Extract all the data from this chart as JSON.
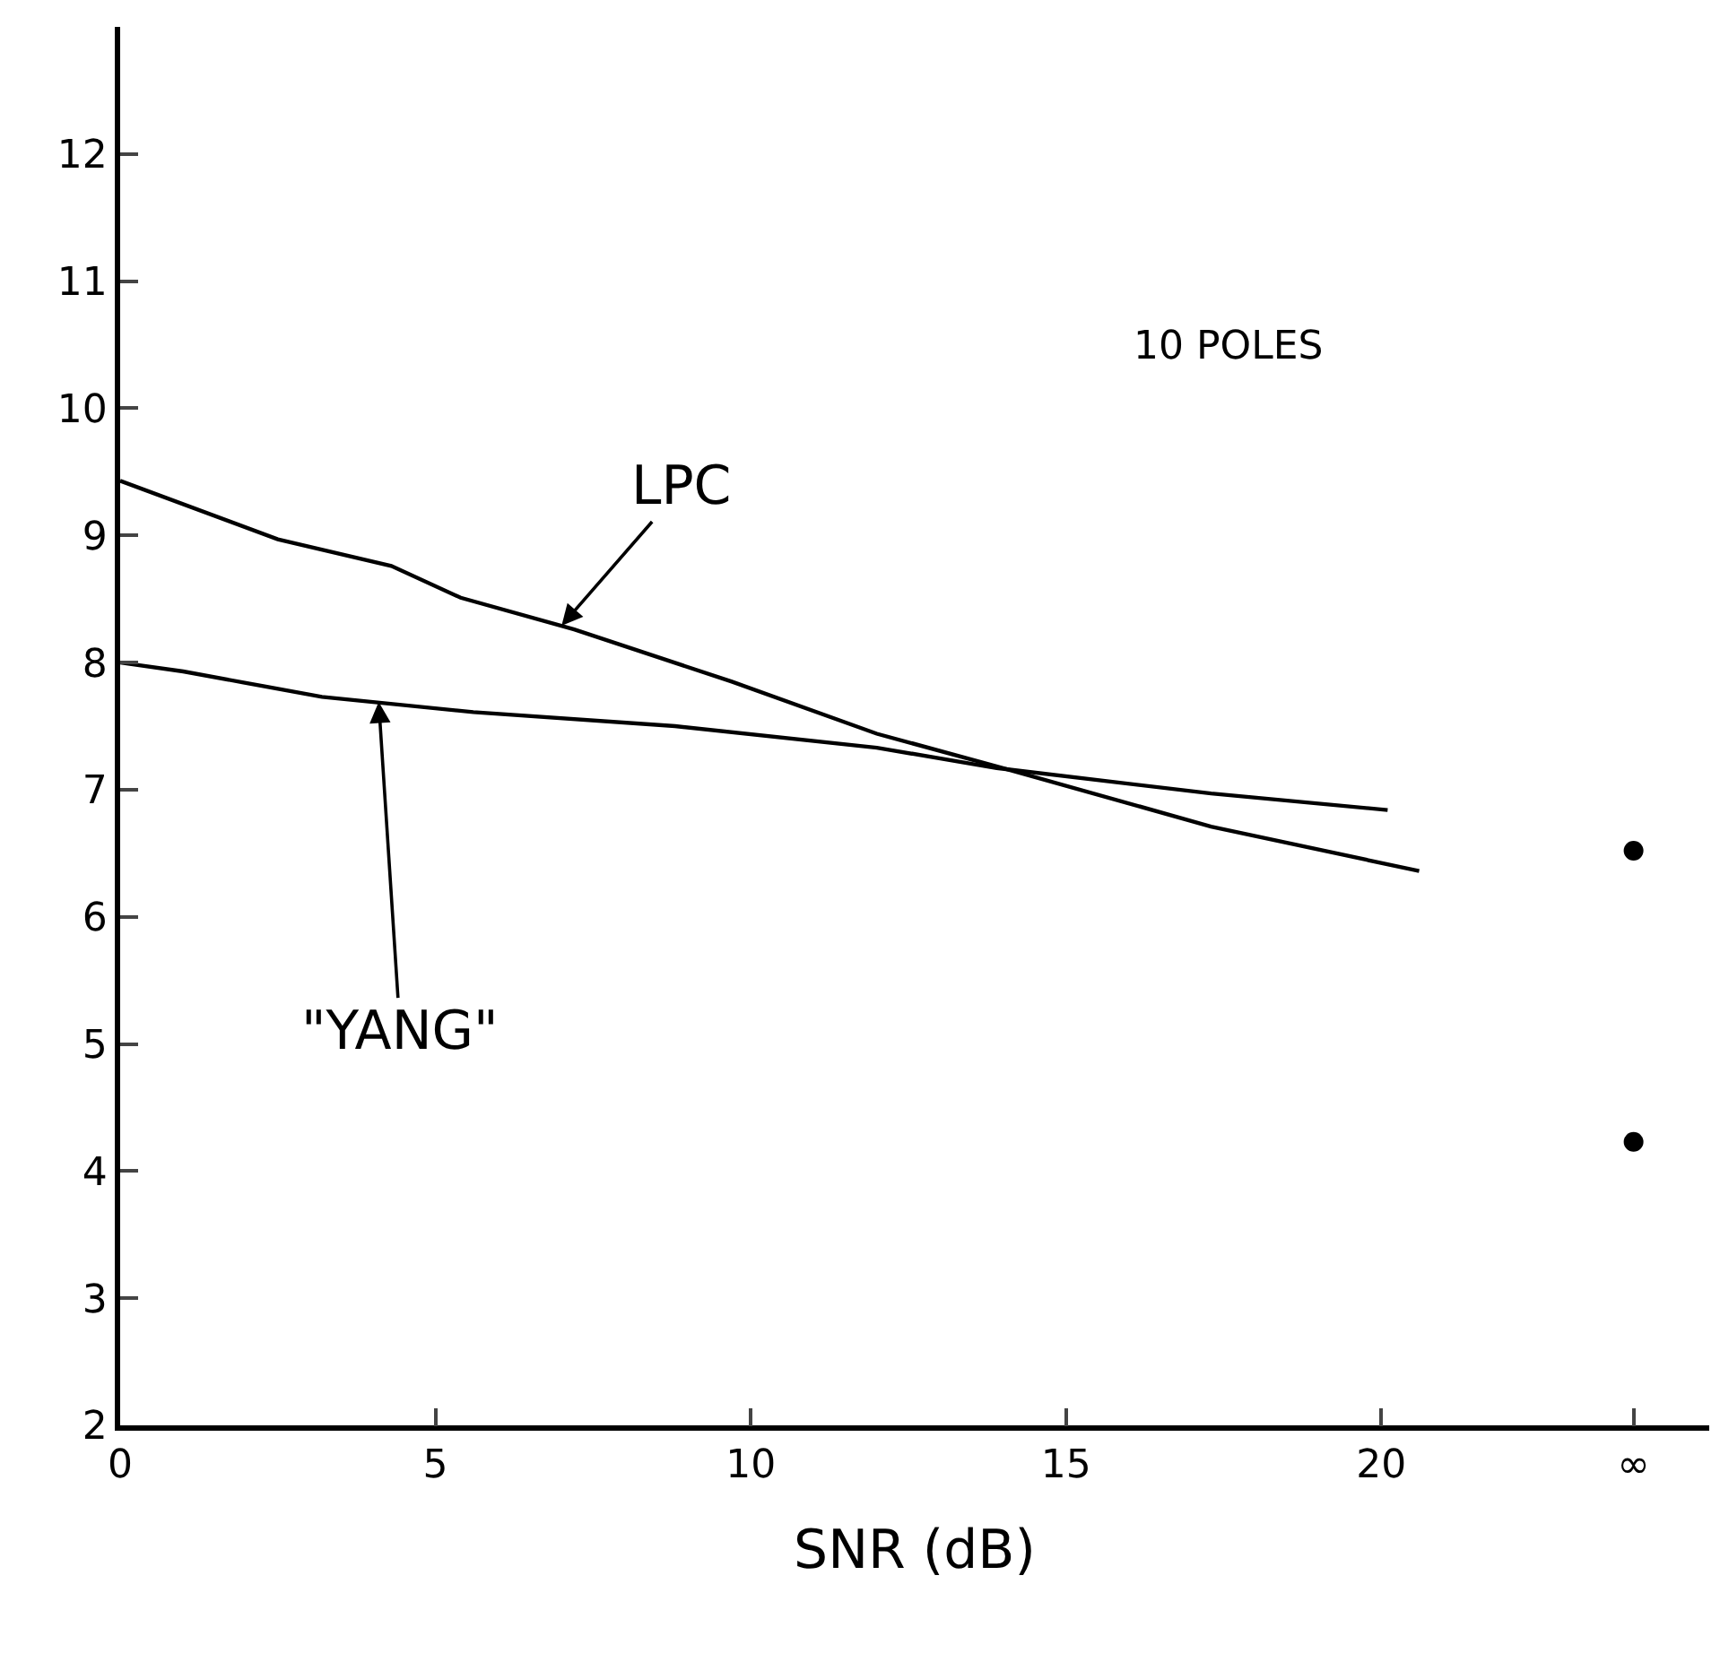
{
  "chart_data": {
    "type": "line",
    "xlabel": "SNR (dB)",
    "series": [
      {
        "color": "#000000",
        "x": [
          0,
          2.5,
          4.3,
          5.4,
          7.2,
          9.7,
          12.0,
          14.0,
          17.3,
          20.6
        ],
        "values": [
          9.43,
          8.97,
          8.76,
          8.51,
          8.26,
          7.85,
          7.44,
          7.17,
          6.71,
          6.36
        ]
      },
      {
        "color": "#000000",
        "x": [
          0,
          1.0,
          3.2,
          5.6,
          8.8,
          12.0,
          13.9,
          17.3,
          20.1
        ],
        "values": [
          8.0,
          7.93,
          7.73,
          7.61,
          7.5,
          7.33,
          7.17,
          6.97,
          6.84
        ]
      },
      {
        "type": "scatter",
        "color": "#000000",
        "marker": "circle",
        "x": [
          24,
          24
        ],
        "values": [
          6.52,
          4.23
        ]
      }
    ],
    "xlim": [
      0,
      25.2
    ],
    "xticks": [
      0,
      5,
      10,
      15,
      20,
      {
        "value": 24,
        "label": "∞"
      }
    ],
    "ylim": [
      2,
      13
    ],
    "yticks": [
      2,
      3,
      4,
      5,
      6,
      7,
      8,
      9,
      10,
      11,
      12
    ],
    "grid": false,
    "marker": "none",
    "line_style": "solid",
    "annotations": [
      "10 POLES",
      {
        "text": "LPC",
        "x": 7.0,
        "y": 8.29
      },
      {
        "text": "\"YANG\"",
        "x": 4.1,
        "y": 7.69
      }
    ]
  }
}
